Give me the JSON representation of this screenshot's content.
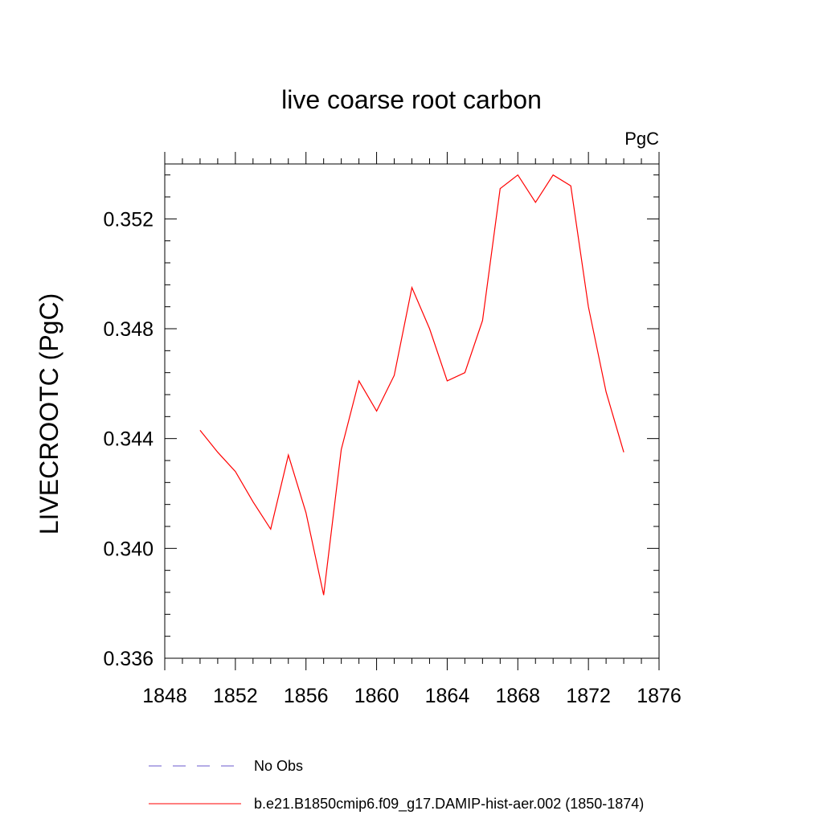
{
  "chart_data": {
    "type": "line",
    "title": "live coarse root carbon",
    "units_label": "PgC",
    "ylabel": "LIVECROOTC  (PgC)",
    "xlabel": "",
    "xlim": [
      1848,
      1876
    ],
    "ylim": [
      0.336,
      0.354
    ],
    "x_ticks": [
      1848,
      1852,
      1856,
      1860,
      1864,
      1868,
      1872,
      1876
    ],
    "x_tick_labels": [
      "1848",
      "1852",
      "1856",
      "1860",
      "1864",
      "1868",
      "1872",
      "1876"
    ],
    "y_ticks": [
      0.336,
      0.34,
      0.344,
      0.348,
      0.352
    ],
    "y_tick_labels": [
      "0.336",
      "0.340",
      "0.344",
      "0.348",
      "0.352"
    ],
    "grid": false,
    "legend_placement": "bottom",
    "series": [
      {
        "name": "No Obs",
        "color": "#6a5acd",
        "dash": "dashed",
        "x": [],
        "y": []
      },
      {
        "name": "b.e21.B1850cmip6.f09_g17.DAMIP-hist-aer.002 (1850-1874)",
        "color": "#ff0000",
        "dash": "solid",
        "x": [
          1850,
          1851,
          1852,
          1853,
          1854,
          1855,
          1856,
          1857,
          1858,
          1859,
          1860,
          1861,
          1862,
          1863,
          1864,
          1865,
          1866,
          1867,
          1868,
          1869,
          1870,
          1871,
          1872,
          1873,
          1874
        ],
        "y": [
          0.3443,
          0.3435,
          0.3428,
          0.3417,
          0.3407,
          0.3434,
          0.3413,
          0.3383,
          0.3436,
          0.3461,
          0.345,
          0.3463,
          0.3495,
          0.348,
          0.3461,
          0.3464,
          0.3483,
          0.3531,
          0.3536,
          0.3526,
          0.3536,
          0.3532,
          0.3488,
          0.3457,
          0.3435
        ]
      }
    ]
  }
}
